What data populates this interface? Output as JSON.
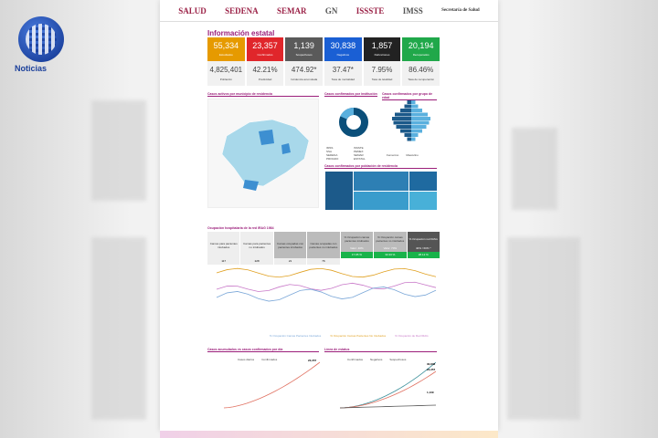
{
  "brand": {
    "name": "Noticias"
  },
  "header": {
    "logos": [
      "SALUD",
      "SEDENA",
      "SEMAR",
      "GN",
      "ISSSTE",
      "IMSS",
      "Secretaría de Salud"
    ]
  },
  "title": "Información estatal",
  "colors": {
    "estudiados": "#e69a00",
    "confirmados": "#e0262b",
    "sospechosos": "#5a5a5a",
    "negativos": "#1a5fd4",
    "defunciones": "#222222",
    "recuperados": "#20a84a",
    "accent": "#9b1e7a"
  },
  "stats": [
    {
      "value": "55,334",
      "label": "Estudiados",
      "sub_value": "4,825,401",
      "sub_label": "Población"
    },
    {
      "value": "23,357",
      "label": "Confirmados",
      "sub_value": "42.21%",
      "sub_label": "Positividad"
    },
    {
      "value": "1,139",
      "label": "Sospechosos",
      "sub_value": "474.92*",
      "sub_label": "Incidencia acumulada"
    },
    {
      "value": "30,838",
      "label": "Negativos",
      "sub_value": "37.47*",
      "sub_label": "Tasa de mortalidad"
    },
    {
      "value": "1,857",
      "label": "Defunciones",
      "sub_value": "7.95%",
      "sub_label": "Tasa de letalidad"
    },
    {
      "value": "20,194",
      "label": "Recuperados",
      "sub_value": "86.46%",
      "sub_label": "Tasa de recuperación"
    }
  ],
  "sections": {
    "map": "Casos activos por municipio de residencia",
    "institution": "Casos confirmados por institución",
    "age": "Casos confirmados por grupo de edad",
    "population": "Casos confirmados por población de residencia",
    "occupancy": "Ocupación hospitalaria de la red IRAG 1984",
    "accum": "Casos acumulados vs casos confirmados por día",
    "deaths": "Línea de estatus"
  },
  "donut_legend": [
    "IMSS",
    "ISSSTE",
    "SSA",
    "PEMEX",
    "SEDENA",
    "SEMAR",
    "PRIVADO",
    "ESTATAL"
  ],
  "pyramid_legend": [
    "Femenino",
    "Masculino"
  ],
  "occupancy": {
    "headers": [
      "Camas para pacientes intubados",
      "Camas para pacientes no intubados",
      "Camas ocupadas con pacientes intubados",
      "Camas ocupadas con pacientes no intubados",
      "% Ocupación camas pacientes intubados",
      "% Ocupación camas pacientes no intubados",
      "% Ocupación red IRAG"
    ],
    "sub": [
      "",
      "",
      "",
      "",
      "Valor: 40%",
      "Valor: 70%",
      "40% / 60% *"
    ],
    "values": [
      "117",
      "228",
      "21",
      "76",
      "17.95 %",
      "33.33 %",
      "28.12 %"
    ]
  },
  "line_legend": [
    "% Ocupación Camas Pacientes Intubados",
    "% Ocupación Camas Pacientes No Intubados",
    "% Ocupación de Red IRAG"
  ],
  "accum_legend": [
    "Casos diarios",
    "Confirmados"
  ],
  "accum_end_label": "23,357",
  "status_legend": [
    "Confirmados",
    "Negativos",
    "Sospechosos"
  ],
  "status_end_labels": [
    "30,838",
    "23,357",
    "1,139"
  ]
}
